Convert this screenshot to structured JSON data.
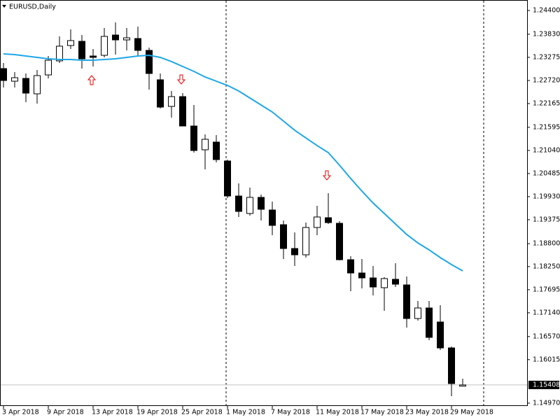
{
  "chart_data": {
    "type": "candlestick",
    "title": "EURUSD,Daily",
    "categories": [
      "3 Apr 2018",
      null,
      null,
      null,
      "9 Apr 2018",
      null,
      null,
      null,
      "13 Apr 2018",
      null,
      null,
      null,
      "19 Apr 2018",
      null,
      null,
      null,
      "25 Apr 2018",
      null,
      null,
      null,
      "1 May 2018",
      null,
      null,
      null,
      "7 May 2018",
      null,
      null,
      null,
      "11 May 2018",
      null,
      null,
      null,
      "17 May 2018",
      null,
      null,
      null,
      "23 May 2018",
      null,
      null,
      null,
      "29 May 2018",
      null
    ],
    "open": [
      1.23005,
      1.22702,
      1.22769,
      1.22399,
      1.22853,
      1.2319,
      1.23559,
      1.2366,
      1.23307,
      1.23324,
      1.23811,
      1.23694,
      1.23727,
      1.23442,
      1.22736,
      1.22097,
      1.22332,
      1.21626,
      1.21055,
      1.2124,
      1.20786,
      1.19945,
      1.19525,
      1.19912,
      1.19609,
      1.19256,
      1.18684,
      1.18533,
      1.19189,
      1.19424,
      1.1929,
      1.18415,
      1.18096,
      1.17978,
      1.17743,
      1.17945,
      1.1781,
      1.17003,
      1.17256,
      1.16919,
      1.16297,
      1.1538
    ],
    "high": [
      1.23139,
      1.22921,
      1.22887,
      1.22971,
      1.23307,
      1.23778,
      1.23946,
      1.23811,
      1.23475,
      1.2398,
      1.24114,
      1.2398,
      1.24013,
      1.23509,
      1.22887,
      1.22467,
      1.22416,
      1.2213,
      1.21424,
      1.21408,
      1.20819,
      1.20248,
      1.20147,
      1.19979,
      1.19811,
      1.19357,
      1.19071,
      1.19306,
      1.1971,
      1.20012,
      1.1934,
      1.185,
      1.18432,
      1.18264,
      1.17995,
      1.18331,
      1.18012,
      1.17424,
      1.17424,
      1.17323,
      1.1633,
      1.15558
    ],
    "low": [
      1.22551,
      1.22551,
      1.22198,
      1.22164,
      1.22769,
      1.23139,
      1.23475,
      1.23005,
      1.23055,
      1.23274,
      1.23341,
      1.23442,
      1.23307,
      1.225,
      1.22046,
      1.21828,
      1.21626,
      1.20987,
      1.20584,
      1.20752,
      1.19895,
      1.19441,
      1.19475,
      1.19357,
      1.19004,
      1.18432,
      1.18264,
      1.18466,
      1.19004,
      1.19273,
      1.18399,
      1.17659,
      1.17726,
      1.17558,
      1.17188,
      1.1776,
      1.16785,
      1.16953,
      1.16482,
      1.16247,
      1.15138,
      1.15373
    ],
    "close": [
      1.22719,
      1.22786,
      1.22416,
      1.22837,
      1.23206,
      1.23543,
      1.23677,
      1.2324,
      1.23274,
      1.23778,
      1.23694,
      1.23744,
      1.23442,
      1.22887,
      1.2208,
      1.22332,
      1.21626,
      1.21038,
      1.21307,
      1.20819,
      1.19945,
      1.19575,
      1.19912,
      1.19626,
      1.19239,
      1.18684,
      1.18533,
      1.19189,
      1.19441,
      1.19306,
      1.18415,
      1.18096,
      1.17978,
      1.1776,
      1.17962,
      1.17827,
      1.17003,
      1.17256,
      1.1655,
      1.16297,
      1.1544,
      1.15408
    ],
    "ma": {
      "color": "#1ea7e6",
      "values": [
        1.23358,
        1.23341,
        1.23307,
        1.23274,
        1.2324,
        1.23223,
        1.23223,
        1.23206,
        1.23206,
        1.23223,
        1.2324,
        1.23274,
        1.23307,
        1.23324,
        1.23274,
        1.23173,
        1.23055,
        1.22937,
        1.22803,
        1.22702,
        1.22601,
        1.22467,
        1.22299,
        1.2213,
        1.21962,
        1.21744,
        1.21525,
        1.2134,
        1.21156,
        1.20987,
        1.20685,
        1.20365,
        1.20063,
        1.19777,
        1.19525,
        1.19273,
        1.19021,
        1.18819,
        1.18651,
        1.18466,
        1.18298,
        1.18147
      ]
    },
    "last_price": 1.15408,
    "ylim": [
      1.14902,
      1.24652
    ],
    "yticks": [
      {
        "value": 1.244,
        "label": "1.24400"
      },
      {
        "value": 1.2383,
        "label": "1.23830"
      },
      {
        "value": 1.23275,
        "label": "1.23275"
      },
      {
        "value": 1.2272,
        "label": "1.22720"
      },
      {
        "value": 1.22165,
        "label": "1.22165"
      },
      {
        "value": 1.21595,
        "label": "1.21595"
      },
      {
        "value": 1.2104,
        "label": "1.21040"
      },
      {
        "value": 1.20485,
        "label": "1.20485"
      },
      {
        "value": 1.1993,
        "label": "1.19930"
      },
      {
        "value": 1.19375,
        "label": "1.19375"
      },
      {
        "value": 1.188,
        "label": "1.18800"
      },
      {
        "value": 1.1825,
        "label": "1.18250"
      },
      {
        "value": 1.17695,
        "label": "1.17695"
      },
      {
        "value": 1.1714,
        "label": "1.17140"
      },
      {
        "value": 1.1657,
        "label": "1.16570"
      },
      {
        "value": 1.16015,
        "label": "1.16015"
      },
      {
        "value": 1.1497,
        "label": "1.14970"
      }
    ]
  }
}
